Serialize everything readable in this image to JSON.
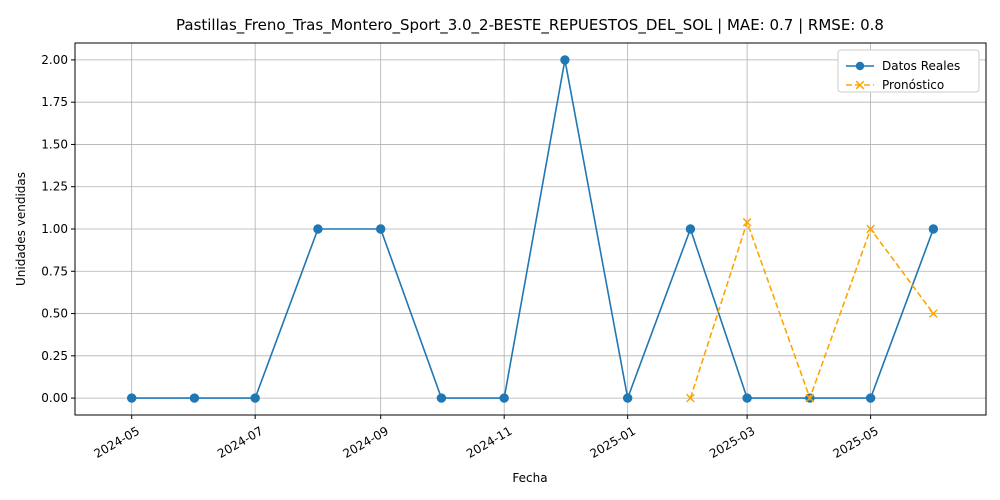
{
  "chart_data": {
    "type": "line",
    "title": "Pastillas_Freno_Tras_Montero_Sport_3.0_2-BESTE_REPUESTOS_DEL_SOL | MAE: 0.7 | RMSE: 0.8",
    "xlabel": "Fecha",
    "ylabel": "Unidades vendidas",
    "x_ticks": [
      "2024-05",
      "2024-07",
      "2024-09",
      "2024-11",
      "2025-01",
      "2025-03",
      "2025-05"
    ],
    "y_ticks": [
      "0.00",
      "0.25",
      "0.50",
      "0.75",
      "1.00",
      "1.25",
      "1.50",
      "1.75",
      "2.00"
    ],
    "ylim": [
      -0.1,
      2.1
    ],
    "xlim": [
      "2024-04-03",
      "2025-06-27"
    ],
    "grid": true,
    "legend_position": "top-right",
    "series": [
      {
        "name": "Datos Reales",
        "color": "#1f77b4",
        "style": "solid",
        "marker": "circle",
        "x": [
          "2024-05-01",
          "2024-06-01",
          "2024-07-01",
          "2024-08-01",
          "2024-09-01",
          "2024-10-01",
          "2024-11-01",
          "2024-12-01",
          "2025-01-01",
          "2025-02-01",
          "2025-03-01",
          "2025-04-01",
          "2025-05-01",
          "2025-06-01"
        ],
        "values": [
          0,
          0,
          0,
          1,
          1,
          0,
          0,
          2,
          0,
          1,
          0,
          0,
          0,
          1
        ]
      },
      {
        "name": "Pronóstico",
        "color": "#ffa500",
        "style": "dashed",
        "marker": "x",
        "x": [
          "2025-02-01",
          "2025-03-01",
          "2025-04-01",
          "2025-05-01",
          "2025-06-01"
        ],
        "values": [
          0.0,
          1.04,
          0.0,
          1.0,
          0.5
        ]
      }
    ]
  }
}
